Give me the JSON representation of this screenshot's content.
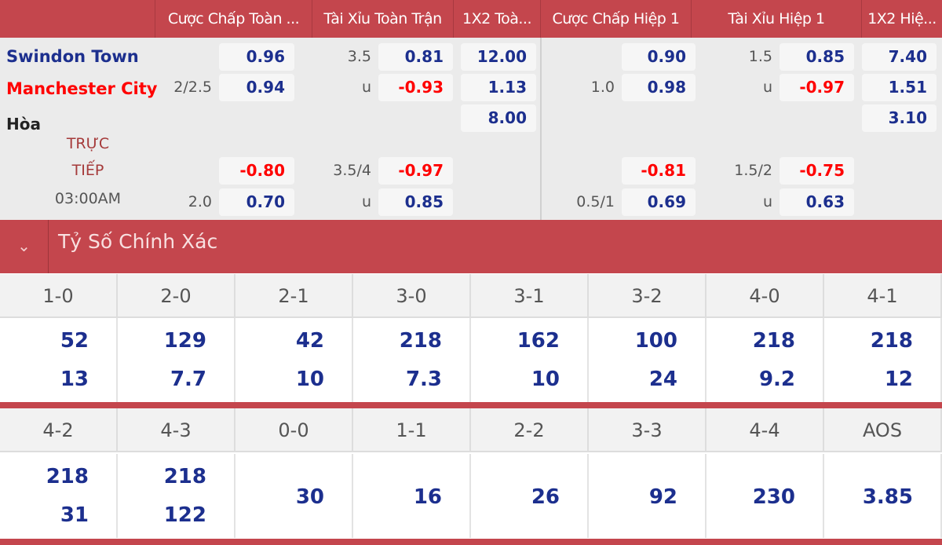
{
  "columns": [
    "Cược Chấp Toàn ...",
    "Tài Xỉu Toàn Trận",
    "1X2 Toà...",
    "Cược Chấp Hiệp 1",
    "Tài Xỉu Hiệp 1",
    "1X2 Hiệ..."
  ],
  "match": {
    "home": "Swindon Town",
    "away": "Manchester City",
    "draw": "Hòa",
    "status_line1": "TRỰC",
    "status_line2": "TIẾP",
    "time": "03:00AM",
    "main": {
      "ft_hdp": {
        "line": "2/2.5",
        "home": "0.96",
        "away": "0.94"
      },
      "ft_ou": {
        "line": "3.5",
        "under_label": "u",
        "over": "0.81",
        "under": "-0.93"
      },
      "ft_1x2": {
        "home": "12.00",
        "away": "1.13",
        "draw": "8.00"
      },
      "h1_hdp": {
        "line": "1.0",
        "home": "0.90",
        "away": "0.98"
      },
      "h1_ou": {
        "line": "1.5",
        "under_label": "u",
        "over": "0.85",
        "under": "-0.97"
      },
      "h1_1x2": {
        "home": "7.40",
        "away": "1.51",
        "draw": "3.10"
      }
    },
    "alt": {
      "ft_hdp": {
        "line": "2.0",
        "home": "-0.80",
        "away": "0.70"
      },
      "ft_ou": {
        "line": "3.5/4",
        "under_label": "u",
        "over": "-0.97",
        "under": "0.85"
      },
      "h1_hdp": {
        "line": "0.5/1",
        "home": "-0.81",
        "away": "0.69"
      },
      "h1_ou": {
        "line": "1.5/2",
        "under_label": "u",
        "over": "-0.75",
        "under": "0.63"
      }
    }
  },
  "correct_score": {
    "title": "Tỷ Số Chính Xác",
    "toggle_icon": "chevron-down-icon",
    "row1": [
      {
        "s": "1-0",
        "a": "52",
        "b": "13"
      },
      {
        "s": "2-0",
        "a": "129",
        "b": "7.7"
      },
      {
        "s": "2-1",
        "a": "42",
        "b": "10"
      },
      {
        "s": "3-0",
        "a": "218",
        "b": "7.3"
      },
      {
        "s": "3-1",
        "a": "162",
        "b": "10"
      },
      {
        "s": "3-2",
        "a": "100",
        "b": "24"
      },
      {
        "s": "4-0",
        "a": "218",
        "b": "9.2"
      },
      {
        "s": "4-1",
        "a": "218",
        "b": "12"
      }
    ],
    "row2": [
      {
        "s": "4-2",
        "a": "218",
        "b": "31"
      },
      {
        "s": "4-3",
        "a": "218",
        "b": "122"
      },
      {
        "s": "0-0",
        "v": "30"
      },
      {
        "s": "1-1",
        "v": "16"
      },
      {
        "s": "2-2",
        "v": "26"
      },
      {
        "s": "3-3",
        "v": "92"
      },
      {
        "s": "4-4",
        "v": "230"
      },
      {
        "s": "AOS",
        "v": "3.85"
      }
    ]
  },
  "colors": {
    "header": "#c4464d",
    "odds_blue": "#1c2f8e",
    "negative": "#ff0000",
    "home_team": "#1c2f8e",
    "away_team": "#ff0000"
  }
}
